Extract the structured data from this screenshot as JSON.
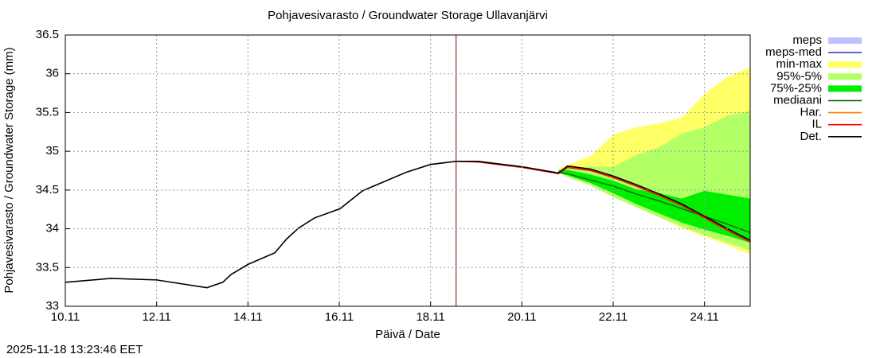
{
  "chart_data": {
    "type": "line",
    "title": "Pohjavesivarasto / Groundwater Storage   Ullavanjärvi",
    "xlabel": "Päivä / Date",
    "ylabel": "Pohjavesivarasto / Groundwater Storage (mm)",
    "xlim": [
      10,
      25
    ],
    "xticks": [
      {
        "value": 10,
        "label": "10.11"
      },
      {
        "value": 12,
        "label": "12.11"
      },
      {
        "value": 14,
        "label": "14.11"
      },
      {
        "value": 16,
        "label": "16.11"
      },
      {
        "value": 18,
        "label": "18.11"
      },
      {
        "value": 20,
        "label": "20.11"
      },
      {
        "value": 22,
        "label": "22.11"
      },
      {
        "value": 24,
        "label": "24.11"
      }
    ],
    "ylim": [
      33,
      36.5
    ],
    "yticks": [
      33,
      33.5,
      34,
      34.5,
      35,
      35.5,
      36,
      36.5
    ],
    "grid": true,
    "now_line": 18.56,
    "now_color": "#8b0000",
    "series": [
      {
        "name": "meps",
        "color": "#c0c0ff",
        "style": "band"
      },
      {
        "name": "meps-med",
        "color": "#4040c0",
        "style": "line"
      },
      {
        "name": "min-max",
        "color": "#ffff66",
        "style": "band",
        "x": [
          20.8,
          21,
          21.5,
          22,
          22.5,
          23,
          23.5,
          24,
          24.5,
          25
        ],
        "high": [
          34.77,
          34.82,
          34.94,
          35.21,
          35.31,
          35.36,
          35.43,
          35.74,
          35.96,
          36.08
        ],
        "low": [
          34.72,
          34.68,
          34.57,
          34.43,
          34.28,
          34.15,
          34.01,
          33.9,
          33.79,
          33.67
        ]
      },
      {
        "name": "95%-5%",
        "color": "#b3ff66",
        "style": "band",
        "x": [
          20.8,
          21,
          21.5,
          22,
          22.5,
          23,
          23.5,
          24,
          24.5,
          25
        ],
        "high": [
          34.77,
          34.78,
          34.8,
          34.8,
          34.95,
          35.05,
          35.23,
          35.31,
          35.46,
          35.52
        ],
        "low": [
          34.72,
          34.67,
          34.56,
          34.41,
          34.28,
          34.15,
          34.03,
          33.92,
          33.82,
          33.72
        ]
      },
      {
        "name": "75%-25%",
        "color": "#00ee00",
        "style": "band",
        "x": [
          20.8,
          21,
          21.5,
          22,
          22.5,
          23,
          23.5,
          24,
          24.5,
          25
        ],
        "high": [
          34.75,
          34.76,
          34.7,
          34.62,
          34.51,
          34.46,
          34.39,
          34.49,
          34.44,
          34.39
        ],
        "low": [
          34.72,
          34.69,
          34.59,
          34.46,
          34.32,
          34.2,
          34.08,
          33.99,
          33.91,
          33.82
        ]
      },
      {
        "name": "mediaani",
        "color": "#006400",
        "style": "line",
        "x": [
          20.8,
          21,
          21.5,
          22,
          22.5,
          23,
          23.5,
          24,
          24.5,
          25
        ],
        "values": [
          34.73,
          34.71,
          34.63,
          34.55,
          34.45,
          34.36,
          34.26,
          34.16,
          34.06,
          33.95
        ]
      },
      {
        "name": "Har.",
        "color": "#ff8000",
        "style": "line",
        "x": [
          18.56,
          19.04,
          20.01,
          20.8,
          21,
          21.5,
          22,
          22.5,
          23,
          23.5,
          24,
          24.5,
          25
        ],
        "values": [
          34.87,
          34.865,
          34.795,
          34.715,
          34.8,
          34.76,
          34.67,
          34.56,
          34.44,
          34.31,
          34.15,
          33.99,
          33.84
        ]
      },
      {
        "name": "IL",
        "color": "#ff0000",
        "style": "line",
        "x": [
          18.56,
          19.04,
          20.01,
          20.8,
          21,
          21.5,
          22,
          22.5,
          23,
          23.5,
          24,
          24.5,
          25
        ],
        "values": [
          34.87,
          34.86,
          34.79,
          34.71,
          34.79,
          34.75,
          34.66,
          34.55,
          34.43,
          34.3,
          34.14,
          33.98,
          33.83
        ]
      },
      {
        "name": "Det.",
        "color": "#000000",
        "style": "line",
        "x": [
          10,
          11,
          12,
          13.1,
          13.45,
          13.63,
          14,
          14.59,
          14.85,
          15.11,
          15.46,
          16.02,
          16.51,
          17.47,
          18,
          18.56,
          19.04,
          20.01,
          20.8,
          21,
          21.5,
          22,
          22.5,
          23,
          23.5,
          24,
          24.5,
          25
        ],
        "values": [
          33.31,
          33.36,
          33.34,
          33.24,
          33.31,
          33.41,
          33.54,
          33.69,
          33.87,
          34.01,
          34.14,
          34.26,
          34.49,
          34.73,
          34.83,
          34.87,
          34.87,
          34.8,
          34.72,
          34.81,
          34.77,
          34.68,
          34.57,
          34.45,
          34.32,
          34.16,
          34.0,
          33.85
        ]
      }
    ]
  },
  "footer": {
    "timestamp": "2025-11-18 13:23:46 EET"
  }
}
